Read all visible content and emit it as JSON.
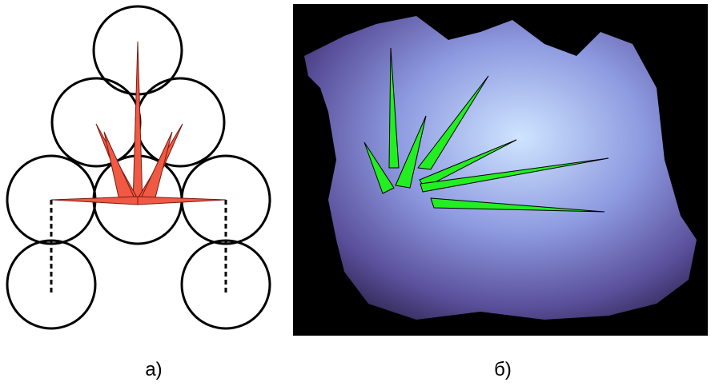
{
  "panels": [
    {
      "label": "а)"
    },
    {
      "label": "б)"
    }
  ]
}
